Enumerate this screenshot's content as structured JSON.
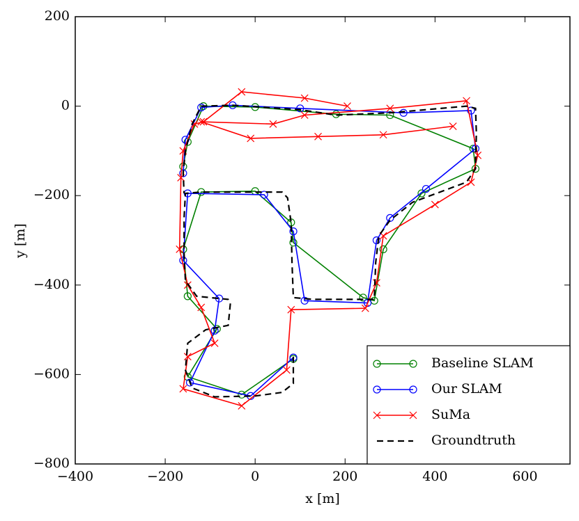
{
  "chart_data": {
    "type": "line",
    "xlabel": "x [m]",
    "ylabel": "y [m]",
    "xlim": [
      -400,
      700
    ],
    "ylim": [
      -800,
      200
    ],
    "xticks": [
      {
        "value": -400,
        "label": "−400"
      },
      {
        "value": -200,
        "label": "−200"
      },
      0,
      200,
      400,
      600
    ],
    "yticks": [
      {
        "value": -800,
        "label": "−800"
      },
      {
        "value": -600,
        "label": "−600"
      },
      {
        "value": -400,
        "label": "−400"
      },
      {
        "value": -200,
        "label": "−200"
      },
      0,
      200
    ],
    "legend": "lower right",
    "series": [
      {
        "name": "Baseline SLAM",
        "color": "#008000",
        "marker": "o",
        "linestyle": "solid",
        "x": [
          85,
          -30,
          -150,
          -85,
          -150,
          -160,
          -120,
          0,
          80,
          85,
          240,
          265,
          285,
          370,
          490,
          485,
          300,
          180,
          0,
          -115,
          -150,
          -160
        ],
        "y": [
          -565,
          -645,
          -605,
          -498,
          -425,
          -320,
          -192,
          -190,
          -260,
          -305,
          -428,
          -435,
          -320,
          -195,
          -140,
          -95,
          -20,
          -18,
          -2,
          0,
          -80,
          -135
        ]
      },
      {
        "name": "Our SLAM",
        "color": "#0000ff",
        "marker": "o",
        "linestyle": "solid",
        "x": [
          85,
          -10,
          -145,
          -90,
          -80,
          -160,
          -150,
          20,
          85,
          110,
          250,
          270,
          300,
          380,
          490,
          480,
          330,
          100,
          -50,
          -120,
          -155,
          -160
        ],
        "y": [
          -562,
          -648,
          -618,
          -502,
          -430,
          -345,
          -195,
          -198,
          -280,
          -435,
          -440,
          -300,
          -250,
          -185,
          -95,
          -10,
          -15,
          -5,
          2,
          -3,
          -75,
          -150
        ]
      },
      {
        "name": "SuMa",
        "color": "#ff0000",
        "marker": "x",
        "linestyle": "solid",
        "x": [
          205,
          110,
          -30,
          -115,
          -135,
          -160,
          -165,
          -168,
          -150,
          -120,
          -90,
          -150,
          -160,
          -30,
          70,
          80,
          245,
          270,
          285,
          400,
          480,
          495,
          470,
          300,
          110,
          40,
          -120,
          -10,
          140,
          285,
          440
        ],
        "y": [
          0,
          18,
          32,
          -35,
          -40,
          -100,
          -160,
          -320,
          -400,
          -450,
          -530,
          -560,
          -632,
          -670,
          -590,
          -455,
          -452,
          -395,
          -290,
          -220,
          -170,
          -110,
          12,
          -5,
          -20,
          -40,
          -35,
          -72,
          -68,
          -64,
          -45
        ]
      },
      {
        "name": "Groundtruth",
        "color": "#000000",
        "marker": null,
        "linestyle": "dashed",
        "x": [
          85,
          85,
          60,
          0,
          -90,
          -140,
          -155,
          -150,
          -110,
          -60,
          -55,
          -60,
          -130,
          -155,
          -158,
          -158,
          -155,
          -120,
          60,
          72,
          80,
          82,
          85,
          130,
          265,
          268,
          275,
          300,
          350,
          470,
          490,
          492,
          490,
          470,
          300,
          180,
          100,
          -50,
          -120,
          -140,
          -155,
          -160,
          -158
        ],
        "y": [
          -560,
          -620,
          -640,
          -648,
          -650,
          -630,
          -590,
          -530,
          -500,
          -490,
          -440,
          -432,
          -425,
          -390,
          -330,
          -250,
          -195,
          -192,
          -192,
          -205,
          -260,
          -350,
          -428,
          -432,
          -432,
          -350,
          -290,
          -255,
          -215,
          -170,
          -140,
          -60,
          -5,
          0,
          -15,
          -20,
          -8,
          2,
          0,
          -40,
          -100,
          -150,
          -195
        ]
      }
    ]
  }
}
